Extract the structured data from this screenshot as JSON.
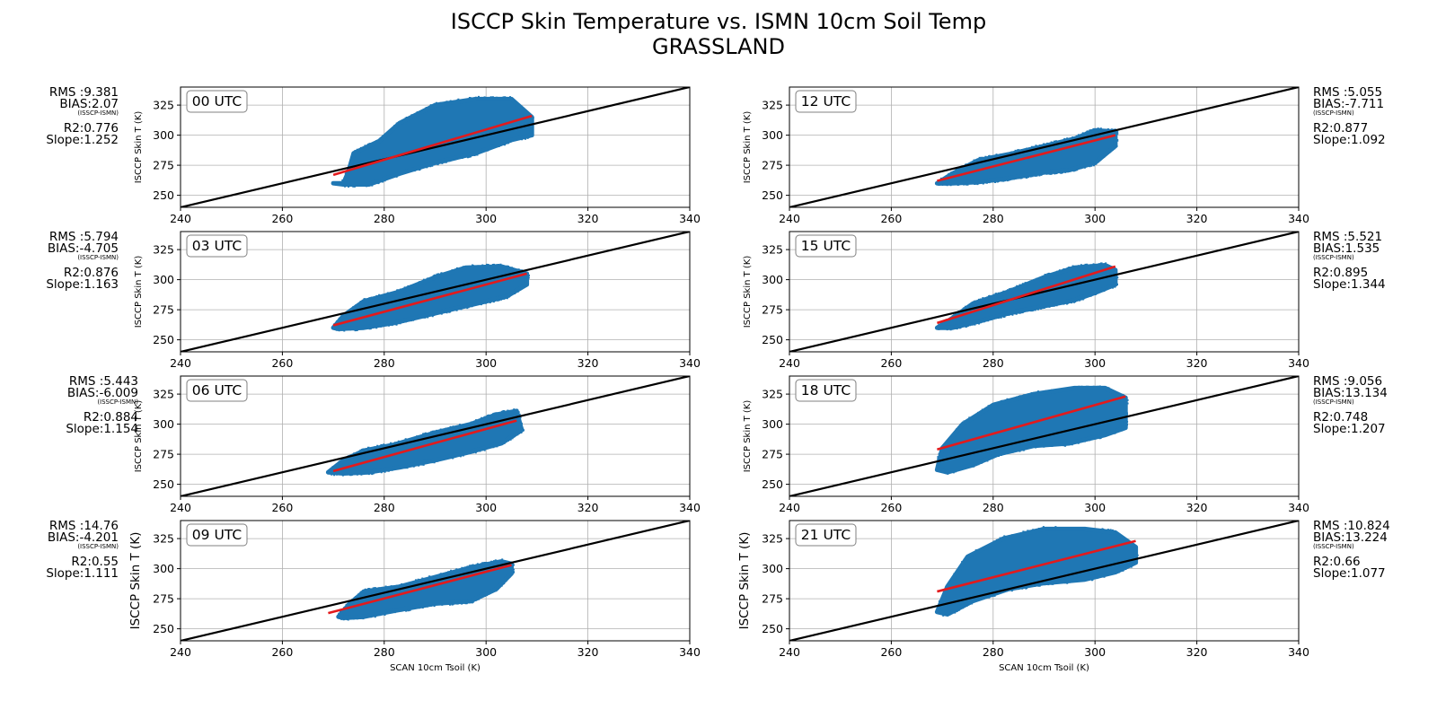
{
  "figure": {
    "title_line1": "ISCCP Skin Temperature vs. ISMN 10cm Soil Temp",
    "title_line2": "GRASSLAND",
    "colors": {
      "points": "#1f77b4",
      "fit": "#e31a1c",
      "one_to_one": "#000000",
      "grid": "#b0b0b0",
      "label_box_edge": "#808080"
    }
  },
  "chart_data": [
    {
      "type": "scatter",
      "panel": "00 UTC",
      "column": "left",
      "xlabel": "",
      "ylabel": "ISCCP Skin T (K)",
      "xlim": [
        240,
        340
      ],
      "ylim": [
        240,
        340
      ],
      "xticks": [
        240,
        260,
        280,
        300,
        320,
        340
      ],
      "yticks": [
        250,
        275,
        300,
        325
      ],
      "stats": {
        "rms": "RMS :9.381",
        "bias": "BIAS:2.07",
        "bias_note": "(ISSCP-ISMN)",
        "r2": "R2:0.776",
        "slope": "Slope:1.252"
      },
      "cloud_envelope": {
        "x": [
          270,
          272,
          273,
          274,
          279,
          283,
          290,
          298,
          305,
          309,
          309,
          305,
          298,
          290,
          283,
          277,
          272,
          270
        ],
        "y": [
          260,
          260,
          270,
          285,
          295,
          310,
          325,
          330,
          330,
          315,
          300,
          296,
          285,
          277,
          268,
          259,
          259,
          260
        ]
      },
      "fit": {
        "x": [
          270,
          309
        ],
        "y": [
          267,
          316
        ]
      }
    },
    {
      "type": "scatter",
      "panel": "03 UTC",
      "column": "left",
      "xlabel": "",
      "ylabel": "ISCCP Skin T (K)",
      "xlim": [
        240,
        340
      ],
      "ylim": [
        240,
        340
      ],
      "xticks": [
        240,
        260,
        280,
        300,
        320,
        340
      ],
      "yticks": [
        250,
        275,
        300,
        325
      ],
      "stats": {
        "rms": "RMS :5.794",
        "bias": "BIAS:-4.705",
        "bias_note": "(ISSCP-ISMN)",
        "r2": "R2:0.876",
        "slope": "Slope:1.163"
      },
      "cloud_envelope": {
        "x": [
          270,
          272,
          276,
          283,
          290,
          296,
          303,
          308,
          308,
          304,
          298,
          290,
          282,
          276,
          271,
          270
        ],
        "y": [
          260,
          270,
          282,
          290,
          302,
          310,
          311,
          305,
          296,
          286,
          280,
          272,
          264,
          260,
          259,
          260
        ]
      },
      "fit": {
        "x": [
          270,
          308
        ],
        "y": [
          262,
          305
        ]
      }
    },
    {
      "type": "scatter",
      "panel": "06 UTC",
      "column": "left",
      "xlabel": "",
      "ylabel": "ISCCP Skin T (K)",
      "xlim": [
        240,
        340
      ],
      "ylim": [
        240,
        340
      ],
      "xticks": [
        240,
        260,
        280,
        300,
        320,
        340
      ],
      "yticks": [
        250,
        275,
        300,
        325
      ],
      "stats": {
        "rms": "RMS :5.443",
        "bias": "BIAS:-6.009",
        "bias_note": "(ISSCP-ISMN)",
        "r2": "R2:0.884",
        "slope": "Slope:1.154"
      },
      "cloud_envelope": {
        "x": [
          269,
          272,
          276,
          282,
          290,
          297,
          302,
          306,
          307,
          303,
          297,
          290,
          283,
          277,
          272,
          269
        ],
        "y": [
          260,
          270,
          278,
          283,
          293,
          300,
          308,
          311,
          295,
          284,
          277,
          270,
          264,
          260,
          259,
          260
        ]
      },
      "fit": {
        "x": [
          270,
          306
        ],
        "y": [
          261,
          303
        ]
      }
    },
    {
      "type": "scatter",
      "panel": "09 UTC",
      "column": "left",
      "xlabel": "SCAN 10cm Tsoil (K)",
      "ylabel": "ISCCP Skin T (K)",
      "xlim": [
        240,
        340
      ],
      "ylim": [
        240,
        340
      ],
      "xticks": [
        240,
        260,
        280,
        300,
        320,
        340
      ],
      "yticks": [
        250,
        275,
        300,
        325
      ],
      "stats": {
        "rms": "RMS :14.76",
        "bias": "BIAS:-4.201",
        "bias_note": "(ISSCP-ISMN)",
        "r2": "R2:0.55",
        "slope": "Slope:1.111"
      },
      "cloud_envelope": {
        "x": [
          271,
          273,
          276,
          283,
          290,
          297,
          303,
          305,
          305,
          302,
          297,
          290,
          282,
          276,
          272,
          271
        ],
        "y": [
          260,
          270,
          281,
          285,
          293,
          301,
          306,
          304,
          296,
          283,
          273,
          271,
          265,
          260,
          259,
          260
        ]
      },
      "fit": {
        "x": [
          269,
          305
        ],
        "y": [
          263,
          303
        ]
      }
    },
    {
      "type": "scatter",
      "panel": "12 UTC",
      "column": "right",
      "xlabel": "",
      "ylabel": "ISCCP Skin T (K)",
      "xlim": [
        240,
        340
      ],
      "ylim": [
        240,
        340
      ],
      "xticks": [
        240,
        260,
        280,
        300,
        320,
        340
      ],
      "yticks": [
        250,
        275,
        300,
        325
      ],
      "stats": {
        "rms": "RMS :5.055",
        "bias": "BIAS:-7.711",
        "bias_note": "(ISSCP-ISMN)",
        "r2": "R2:0.877",
        "slope": "Slope:1.092"
      },
      "cloud_envelope": {
        "x": [
          269,
          272,
          277,
          283,
          290,
          296,
          300,
          304,
          304,
          300,
          295,
          290,
          283,
          277,
          272,
          269
        ],
        "y": [
          260,
          268,
          279,
          284,
          291,
          297,
          304,
          303,
          291,
          277,
          271,
          269,
          264,
          261,
          260,
          260
        ]
      },
      "fit": {
        "x": [
          269,
          304
        ],
        "y": [
          262,
          300
        ]
      }
    },
    {
      "type": "scatter",
      "panel": "15 UTC",
      "column": "right",
      "xlabel": "",
      "ylabel": "ISCCP Skin T (K)",
      "xlim": [
        240,
        340
      ],
      "ylim": [
        240,
        340
      ],
      "xticks": [
        240,
        260,
        280,
        300,
        320,
        340
      ],
      "yticks": [
        250,
        275,
        300,
        325
      ],
      "stats": {
        "rms": "RMS :5.521",
        "bias": "BIAS:1.535",
        "bias_note": "(ISSCP-ISMN)",
        "r2": "R2:0.895",
        "slope": "Slope:1.344"
      },
      "cloud_envelope": {
        "x": [
          269,
          272,
          276,
          283,
          290,
          296,
          302,
          304,
          304,
          300,
          296,
          290,
          283,
          277,
          272,
          269
        ],
        "y": [
          260,
          268,
          280,
          290,
          302,
          310,
          312,
          308,
          296,
          289,
          283,
          278,
          272,
          265,
          260,
          260
        ]
      },
      "fit": {
        "x": [
          269,
          304
        ],
        "y": [
          264,
          311
        ]
      }
    },
    {
      "type": "scatter",
      "panel": "18 UTC",
      "column": "right",
      "xlabel": "",
      "ylabel": "ISCCP Skin T (K)",
      "xlim": [
        240,
        340
      ],
      "ylim": [
        240,
        340
      ],
      "xticks": [
        240,
        260,
        280,
        300,
        320,
        340
      ],
      "yticks": [
        250,
        275,
        300,
        325
      ],
      "stats": {
        "rms": "RMS :9.056",
        "bias": "BIAS:13.134",
        "bias_note": "(ISSCP-ISMN)",
        "r2": "R2:0.748",
        "slope": "Slope:1.207"
      },
      "cloud_envelope": {
        "x": [
          269,
          270,
          274,
          280,
          288,
          296,
          302,
          306,
          306,
          302,
          295,
          288,
          281,
          276,
          271,
          269
        ],
        "y": [
          262,
          280,
          300,
          316,
          325,
          330,
          330,
          322,
          297,
          291,
          284,
          282,
          275,
          266,
          260,
          262
        ]
      },
      "fit": {
        "x": [
          269,
          306
        ],
        "y": [
          279,
          323
        ]
      }
    },
    {
      "type": "scatter",
      "panel": "21 UTC",
      "column": "right",
      "xlabel": "SCAN 10cm Tsoil (K)",
      "ylabel": "ISCCP Skin T (K)",
      "xlim": [
        240,
        340
      ],
      "ylim": [
        240,
        340
      ],
      "xticks": [
        240,
        260,
        280,
        300,
        320,
        340
      ],
      "yticks": [
        250,
        275,
        300,
        325
      ],
      "stats": {
        "rms": "RMS :10.824",
        "bias": "BIAS:13.224",
        "bias_note": "(ISSCP-ISMN)",
        "r2": "R2:0.66",
        "slope": "Slope:1.077"
      },
      "cloud_envelope": {
        "x": [
          269,
          271,
          275,
          282,
          290,
          298,
          304,
          308,
          308,
          304,
          298,
          290,
          283,
          276,
          271,
          269
        ],
        "y": [
          264,
          285,
          310,
          325,
          333,
          333,
          330,
          318,
          305,
          297,
          291,
          288,
          283,
          273,
          262,
          264
        ]
      },
      "fit": {
        "x": [
          269,
          308
        ],
        "y": [
          281,
          323
        ]
      }
    }
  ]
}
